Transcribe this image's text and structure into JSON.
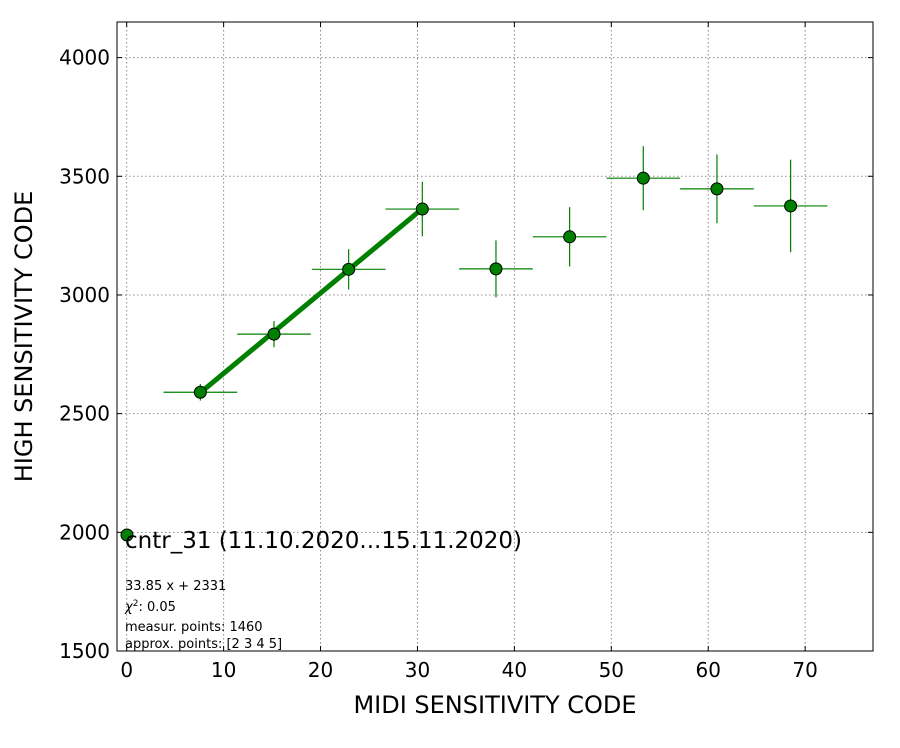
{
  "chart_data": {
    "type": "scatter",
    "xlabel": "MIDI SENSITIVITY CODE",
    "ylabel": "HIGH SENSITIVITY CODE",
    "xlim": [
      -1,
      77
    ],
    "ylim": [
      1500,
      4150
    ],
    "xticks": [
      0,
      10,
      20,
      30,
      40,
      50,
      60,
      70
    ],
    "yticks": [
      1500,
      2000,
      2500,
      3000,
      3500,
      4000
    ],
    "grid": true,
    "legend": {
      "label": "cntr_31 (11.10.2020...15.11.2020)",
      "placement": "lower-left"
    },
    "annotations": [
      "33.85 x + 2331",
      "χ",
      "2",
      ": 0.05",
      "measur. points: 1460",
      "approx. points: [2 3 4 5]"
    ],
    "series": [
      {
        "color": "#008000",
        "points": [
          {
            "x": 7.6,
            "y": 2590,
            "xerr": 3.8,
            "yerr": 35
          },
          {
            "x": 15.2,
            "y": 2835,
            "xerr": 3.8,
            "yerr": 55
          },
          {
            "x": 22.9,
            "y": 3108,
            "xerr": 3.8,
            "yerr": 85
          },
          {
            "x": 30.5,
            "y": 3362,
            "xerr": 3.8,
            "yerr": 115
          },
          {
            "x": 38.1,
            "y": 3110,
            "xerr": 3.8,
            "yerr": 120
          },
          {
            "x": 45.7,
            "y": 3245,
            "xerr": 3.8,
            "yerr": 125
          },
          {
            "x": 53.3,
            "y": 3492,
            "xerr": 3.8,
            "yerr": 135
          },
          {
            "x": 60.9,
            "y": 3447,
            "xerr": 3.8,
            "yerr": 145
          },
          {
            "x": 68.5,
            "y": 3375,
            "xerr": 3.8,
            "yerr": 195
          }
        ]
      }
    ],
    "fit": {
      "slope": 33.85,
      "intercept": 2331,
      "x_range": [
        7.6,
        30.5
      ],
      "color": "#008000"
    }
  }
}
